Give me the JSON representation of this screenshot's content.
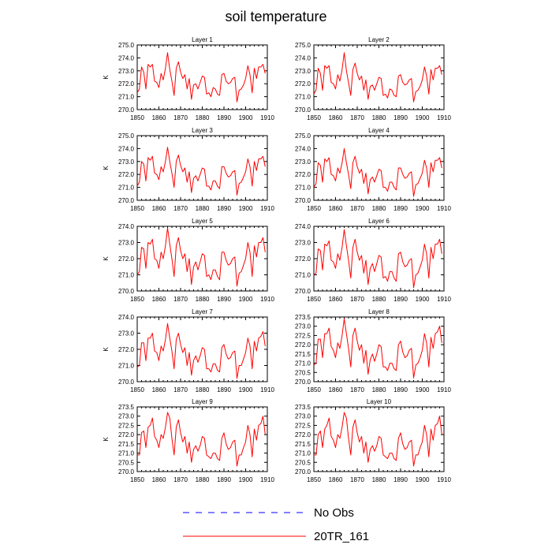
{
  "figure": {
    "title": "soil temperature",
    "legend": [
      {
        "label": "No Obs",
        "color": "#0000ff",
        "dash": "dashed"
      },
      {
        "label": "20TR_161",
        "color": "#ff0000",
        "dash": "solid"
      }
    ]
  },
  "chart_data": [
    {
      "type": "line",
      "title": "Layer 1",
      "ylabel": "K",
      "xlim": [
        1850,
        1910
      ],
      "ylim": [
        270.0,
        275.0
      ],
      "xticks": [
        "1850",
        "1860",
        "1870",
        "1880",
        "1890",
        "1900",
        "1910"
      ],
      "yticks": [
        "270.0",
        "271.0",
        "272.0",
        "273.0",
        "274.0",
        "275.0"
      ],
      "series": [
        {
          "name": "20TR_161",
          "x_start": 1850,
          "x_step": 1,
          "values": [
            271.3,
            271.6,
            273.3,
            272.9,
            271.6,
            273.5,
            273.3,
            273.5,
            272.2,
            272.1,
            271.7,
            272.8,
            272.3,
            273.2,
            274.4,
            273.1,
            272.2,
            271.1,
            273.2,
            273.7,
            272.9,
            272.4,
            272.7,
            271.6,
            272.4,
            270.8,
            271.9,
            272.0,
            271.6,
            272.1,
            272.6,
            272.5,
            271.2,
            271.3,
            271.0,
            271.7,
            271.6,
            271.2,
            271.1,
            272.7,
            272.8,
            272.2,
            272.0,
            272.1,
            272.4,
            272.5,
            270.6,
            271.5,
            271.6,
            271.9,
            272.4,
            273.4,
            272.7,
            271.3,
            273.2,
            272.4,
            273.3,
            273.3,
            273.5,
            272.8
          ]
        }
      ]
    },
    {
      "type": "line",
      "title": "Layer 2",
      "ylabel": "",
      "xlim": [
        1850,
        1910
      ],
      "ylim": [
        270.0,
        275.0
      ],
      "xticks": [
        "1850",
        "1860",
        "1870",
        "1880",
        "1890",
        "1900",
        "1910"
      ],
      "yticks": [
        "270.0",
        "271.0",
        "272.0",
        "273.0",
        "274.0",
        "275.0"
      ],
      "series": [
        {
          "name": "20TR_161",
          "x_start": 1850,
          "x_step": 1,
          "values": [
            271.2,
            271.5,
            273.2,
            272.8,
            271.5,
            273.4,
            273.2,
            273.4,
            272.1,
            272.0,
            271.6,
            272.7,
            272.2,
            273.1,
            274.4,
            273.0,
            272.1,
            271.1,
            273.1,
            273.6,
            272.8,
            272.3,
            272.6,
            271.5,
            272.3,
            270.8,
            271.8,
            271.9,
            271.5,
            272.0,
            272.5,
            272.4,
            271.1,
            271.2,
            270.9,
            271.6,
            271.5,
            271.1,
            271.0,
            272.6,
            272.7,
            272.1,
            271.9,
            272.0,
            272.3,
            272.4,
            270.6,
            271.4,
            271.5,
            271.8,
            272.3,
            273.3,
            272.6,
            271.2,
            273.1,
            272.3,
            273.2,
            273.2,
            273.4,
            272.7
          ]
        }
      ]
    },
    {
      "type": "line",
      "title": "Layer 3",
      "ylabel": "K",
      "xlim": [
        1850,
        1910
      ],
      "ylim": [
        270.0,
        275.0
      ],
      "xticks": [
        "1850",
        "1860",
        "1870",
        "1880",
        "1890",
        "1900",
        "1910"
      ],
      "yticks": [
        "270.0",
        "271.0",
        "272.0",
        "273.0",
        "274.0",
        "275.0"
      ],
      "series": [
        {
          "name": "20TR_161",
          "x_start": 1850,
          "x_step": 1,
          "values": [
            271.1,
            271.4,
            273.0,
            272.8,
            271.5,
            273.3,
            273.1,
            273.4,
            272.1,
            272.0,
            271.6,
            272.6,
            272.2,
            273.0,
            274.1,
            273.0,
            272.1,
            271.0,
            273.0,
            273.5,
            272.7,
            272.2,
            272.5,
            271.4,
            272.2,
            270.6,
            271.7,
            271.9,
            271.5,
            272.0,
            272.5,
            272.4,
            271.1,
            271.1,
            270.8,
            271.5,
            271.5,
            271.1,
            270.9,
            272.6,
            272.6,
            272.1,
            271.8,
            271.9,
            272.2,
            272.3,
            270.4,
            271.3,
            271.4,
            271.8,
            272.2,
            273.2,
            272.6,
            271.1,
            273.0,
            272.3,
            273.2,
            273.2,
            273.4,
            272.6
          ]
        }
      ]
    },
    {
      "type": "line",
      "title": "Layer 4",
      "ylabel": "",
      "xlim": [
        1850,
        1910
      ],
      "ylim": [
        270.0,
        275.0
      ],
      "xticks": [
        "1850",
        "1860",
        "1870",
        "1880",
        "1890",
        "1900",
        "1910"
      ],
      "yticks": [
        "270.0",
        "271.0",
        "272.0",
        "273.0",
        "274.0",
        "275.0"
      ],
      "series": [
        {
          "name": "20TR_161",
          "x_start": 1850,
          "x_step": 1,
          "values": [
            271.0,
            271.3,
            272.9,
            272.7,
            271.4,
            273.2,
            273.0,
            273.3,
            272.0,
            271.9,
            271.5,
            272.5,
            272.1,
            272.9,
            274.0,
            272.9,
            272.0,
            270.9,
            272.9,
            273.4,
            272.6,
            272.1,
            272.4,
            271.3,
            272.1,
            270.5,
            271.6,
            271.8,
            271.4,
            271.9,
            272.4,
            272.3,
            271.0,
            271.0,
            270.7,
            271.4,
            271.4,
            271.0,
            270.8,
            272.5,
            272.5,
            272.0,
            271.7,
            271.8,
            272.1,
            272.2,
            270.3,
            271.2,
            271.3,
            271.7,
            272.1,
            273.1,
            272.5,
            271.0,
            272.9,
            272.2,
            273.1,
            273.1,
            273.3,
            272.5
          ]
        }
      ]
    },
    {
      "type": "line",
      "title": "Layer 5",
      "ylabel": "K",
      "xlim": [
        1850,
        1910
      ],
      "ylim": [
        270.0,
        274.0
      ],
      "xticks": [
        "1850",
        "1860",
        "1870",
        "1880",
        "1890",
        "1900",
        "1910"
      ],
      "yticks": [
        "270.0",
        "271.0",
        "272.0",
        "273.0",
        "274.0"
      ],
      "series": [
        {
          "name": "20TR_161",
          "x_start": 1850,
          "x_step": 1,
          "values": [
            271.0,
            271.2,
            272.7,
            272.6,
            271.4,
            273.0,
            272.9,
            273.2,
            272.0,
            271.9,
            271.4,
            272.4,
            272.0,
            272.8,
            273.9,
            272.9,
            272.0,
            270.9,
            272.8,
            273.3,
            272.5,
            272.0,
            272.3,
            271.2,
            272.0,
            270.4,
            271.5,
            271.8,
            271.3,
            271.8,
            272.3,
            272.2,
            270.9,
            271.0,
            270.7,
            271.3,
            271.3,
            270.9,
            270.7,
            272.4,
            272.4,
            271.9,
            271.6,
            271.7,
            272.0,
            272.1,
            270.3,
            271.1,
            271.2,
            271.6,
            272.0,
            273.0,
            272.4,
            270.9,
            272.8,
            272.1,
            273.0,
            273.0,
            273.3,
            272.4
          ]
        }
      ]
    },
    {
      "type": "line",
      "title": "Layer 6",
      "ylabel": "",
      "xlim": [
        1850,
        1910
      ],
      "ylim": [
        270.0,
        274.0
      ],
      "xticks": [
        "1850",
        "1860",
        "1870",
        "1880",
        "1890",
        "1900",
        "1910"
      ],
      "yticks": [
        "270.0",
        "271.0",
        "272.0",
        "273.0",
        "274.0"
      ],
      "series": [
        {
          "name": "20TR_161",
          "x_start": 1850,
          "x_step": 1,
          "values": [
            271.0,
            271.1,
            272.6,
            272.5,
            271.3,
            272.9,
            272.8,
            273.1,
            271.9,
            271.8,
            271.4,
            272.3,
            271.9,
            272.7,
            273.8,
            272.8,
            271.9,
            270.8,
            272.7,
            273.2,
            272.4,
            271.9,
            272.2,
            271.1,
            271.9,
            270.4,
            271.4,
            271.7,
            271.2,
            271.7,
            272.2,
            272.1,
            270.8,
            270.9,
            270.6,
            271.2,
            271.2,
            270.8,
            270.6,
            272.3,
            272.4,
            271.8,
            271.5,
            271.6,
            271.9,
            272.0,
            270.2,
            271.0,
            271.1,
            271.5,
            271.9,
            272.9,
            272.3,
            270.8,
            272.7,
            272.0,
            272.9,
            272.9,
            273.2,
            272.3
          ]
        }
      ]
    },
    {
      "type": "line",
      "title": "Layer 7",
      "ylabel": "K",
      "xlim": [
        1850,
        1910
      ],
      "ylim": [
        270.0,
        274.0
      ],
      "xticks": [
        "1850",
        "1860",
        "1870",
        "1880",
        "1890",
        "1900",
        "1910"
      ],
      "yticks": [
        "270.0",
        "271.0",
        "272.0",
        "273.0",
        "274.0"
      ],
      "series": [
        {
          "name": "20TR_161",
          "x_start": 1850,
          "x_step": 1,
          "values": [
            270.9,
            271.0,
            272.4,
            272.4,
            271.3,
            272.7,
            272.7,
            273.0,
            271.9,
            271.8,
            271.3,
            272.2,
            271.9,
            272.6,
            273.6,
            272.7,
            271.9,
            270.8,
            272.6,
            273.0,
            272.3,
            271.8,
            272.1,
            271.0,
            271.8,
            270.4,
            271.3,
            271.6,
            271.2,
            271.6,
            272.1,
            272.0,
            270.8,
            270.8,
            270.6,
            271.1,
            271.1,
            270.7,
            270.6,
            272.1,
            272.3,
            271.7,
            271.4,
            271.5,
            271.8,
            271.9,
            270.2,
            271.0,
            271.0,
            271.4,
            271.8,
            272.7,
            272.2,
            270.8,
            272.5,
            271.9,
            272.7,
            272.8,
            273.1,
            272.2
          ]
        }
      ]
    },
    {
      "type": "line",
      "title": "Layer 8",
      "ylabel": "",
      "xlim": [
        1850,
        1910
      ],
      "ylim": [
        270.0,
        273.5
      ],
      "xticks": [
        "1850",
        "1860",
        "1870",
        "1880",
        "1890",
        "1900",
        "1910"
      ],
      "yticks": [
        "270.0",
        "270.5",
        "271.0",
        "271.5",
        "272.0",
        "272.5",
        "273.0",
        "273.5"
      ],
      "series": [
        {
          "name": "20TR_161",
          "x_start": 1850,
          "x_step": 1,
          "values": [
            270.9,
            271.0,
            272.3,
            272.3,
            271.3,
            272.6,
            272.6,
            272.9,
            271.9,
            271.7,
            271.3,
            272.1,
            271.8,
            272.5,
            273.4,
            272.6,
            271.8,
            270.8,
            272.5,
            272.9,
            272.2,
            271.7,
            272.0,
            271.0,
            271.7,
            270.4,
            271.2,
            271.5,
            271.1,
            271.5,
            272.0,
            271.9,
            270.8,
            270.8,
            270.6,
            271.0,
            271.0,
            270.7,
            270.6,
            272.0,
            272.2,
            271.6,
            271.3,
            271.4,
            271.7,
            271.8,
            270.2,
            270.9,
            271.0,
            271.3,
            271.7,
            272.6,
            272.1,
            270.8,
            272.4,
            271.8,
            272.6,
            272.7,
            273.0,
            272.1
          ]
        }
      ]
    },
    {
      "type": "line",
      "title": "Layer 9",
      "ylabel": "K",
      "xlim": [
        1850,
        1910
      ],
      "ylim": [
        270.0,
        273.5
      ],
      "xticks": [
        "1850",
        "1860",
        "1870",
        "1880",
        "1890",
        "1900",
        "1910"
      ],
      "yticks": [
        "270.0",
        "270.5",
        "271.0",
        "271.5",
        "272.0",
        "272.5",
        "273.0",
        "273.5"
      ],
      "series": [
        {
          "name": "20TR_161",
          "x_start": 1850,
          "x_step": 1,
          "values": [
            270.9,
            270.9,
            272.1,
            272.2,
            271.3,
            272.4,
            272.5,
            272.9,
            271.9,
            271.7,
            271.3,
            272.0,
            271.8,
            272.4,
            273.2,
            272.9,
            271.8,
            270.9,
            272.4,
            272.8,
            272.1,
            271.6,
            271.9,
            271.0,
            271.6,
            270.5,
            271.2,
            271.4,
            271.1,
            271.4,
            271.9,
            271.8,
            270.9,
            270.8,
            270.7,
            271.0,
            271.0,
            270.7,
            270.6,
            271.8,
            272.1,
            271.5,
            271.2,
            271.3,
            271.6,
            271.7,
            270.3,
            270.9,
            270.9,
            271.3,
            271.6,
            272.5,
            272.0,
            270.8,
            272.3,
            271.7,
            272.5,
            272.6,
            273.0,
            272.0
          ]
        }
      ]
    },
    {
      "type": "line",
      "title": "Layer 10",
      "ylabel": "",
      "xlim": [
        1850,
        1910
      ],
      "ylim": [
        270.0,
        273.5
      ],
      "xticks": [
        "1850",
        "1860",
        "1870",
        "1880",
        "1890",
        "1900",
        "1910"
      ],
      "yticks": [
        "270.0",
        "270.5",
        "271.0",
        "271.5",
        "272.0",
        "272.5",
        "273.0",
        "273.5"
      ],
      "series": [
        {
          "name": "20TR_161",
          "x_start": 1850,
          "x_step": 1,
          "values": [
            270.9,
            270.9,
            272.0,
            272.2,
            271.3,
            272.3,
            272.5,
            272.9,
            271.9,
            271.7,
            271.3,
            272.0,
            271.8,
            272.4,
            273.2,
            272.9,
            271.8,
            270.9,
            272.4,
            272.8,
            272.1,
            271.6,
            271.9,
            271.0,
            271.6,
            270.5,
            271.2,
            271.4,
            271.1,
            271.4,
            271.9,
            271.8,
            270.9,
            270.8,
            270.7,
            271.0,
            271.0,
            270.7,
            270.6,
            271.8,
            272.1,
            271.5,
            271.2,
            271.3,
            271.6,
            271.7,
            270.3,
            270.9,
            270.9,
            271.3,
            271.6,
            272.5,
            272.0,
            270.8,
            272.3,
            271.7,
            272.5,
            272.6,
            273.0,
            272.0
          ]
        }
      ]
    }
  ]
}
